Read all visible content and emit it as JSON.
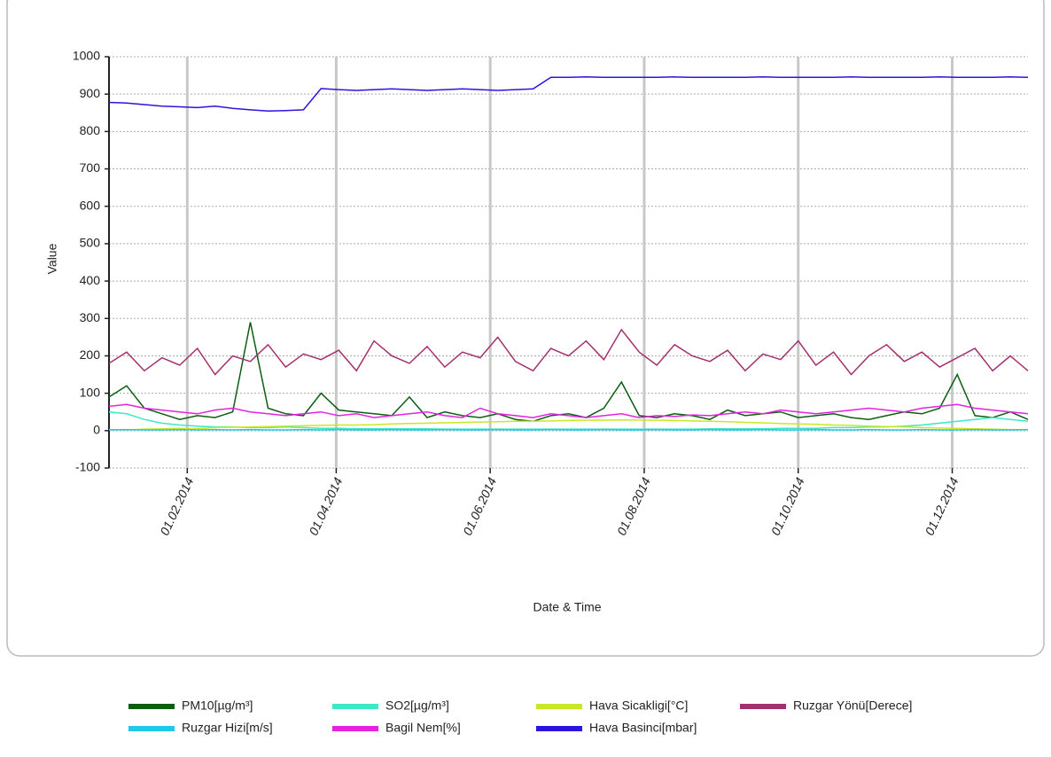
{
  "chart_data": {
    "type": "line",
    "xlabel": "Date & Time",
    "ylabel": "Value",
    "x": [
      "2014-01-01",
      "2014-01-08",
      "2014-01-15",
      "2014-01-22",
      "2014-01-29",
      "2014-02-05",
      "2014-02-12",
      "2014-02-19",
      "2014-02-26",
      "2014-03-05",
      "2014-03-12",
      "2014-03-19",
      "2014-03-26",
      "2014-04-02",
      "2014-04-09",
      "2014-04-16",
      "2014-04-23",
      "2014-04-30",
      "2014-05-07",
      "2014-05-14",
      "2014-05-21",
      "2014-05-28",
      "2014-06-04",
      "2014-06-11",
      "2014-06-18",
      "2014-06-25",
      "2014-07-02",
      "2014-07-09",
      "2014-07-16",
      "2014-07-23",
      "2014-07-30",
      "2014-08-06",
      "2014-08-13",
      "2014-08-20",
      "2014-08-27",
      "2014-09-03",
      "2014-09-10",
      "2014-09-17",
      "2014-09-24",
      "2014-10-01",
      "2014-10-08",
      "2014-10-15",
      "2014-10-22",
      "2014-10-29",
      "2014-11-05",
      "2014-11-12",
      "2014-11-19",
      "2014-11-26",
      "2014-12-03",
      "2014-12-10",
      "2014-12-17",
      "2014-12-24",
      "2014-12-31"
    ],
    "series": [
      {
        "name": "PM10[µg/m³]",
        "color": "#0b5e12",
        "values": [
          90,
          120,
          60,
          45,
          30,
          40,
          35,
          50,
          290,
          60,
          45,
          40,
          100,
          55,
          50,
          45,
          40,
          90,
          35,
          50,
          40,
          35,
          45,
          30,
          25,
          40,
          45,
          35,
          60,
          130,
          40,
          35,
          45,
          40,
          30,
          55,
          40,
          45,
          50,
          35,
          40,
          45,
          35,
          30,
          40,
          50,
          45,
          60,
          150,
          40,
          35,
          50,
          30
        ]
      },
      {
        "name": "SO2[µg/m³]",
        "color": "#3de8c4",
        "values": [
          50,
          45,
          30,
          20,
          15,
          12,
          10,
          10,
          8,
          8,
          10,
          8,
          6,
          6,
          5,
          5,
          5,
          5,
          5,
          4,
          4,
          4,
          4,
          4,
          4,
          4,
          4,
          4,
          4,
          4,
          4,
          4,
          4,
          4,
          5,
          5,
          5,
          5,
          6,
          6,
          6,
          8,
          8,
          10,
          10,
          12,
          15,
          20,
          25,
          30,
          35,
          30,
          25
        ]
      },
      {
        "name": "Hava Sicakligi[°C]",
        "color": "#c8e826",
        "values": [
          3,
          2,
          4,
          5,
          6,
          5,
          8,
          9,
          10,
          11,
          12,
          13,
          14,
          15,
          15,
          16,
          18,
          19,
          20,
          21,
          22,
          23,
          24,
          25,
          25,
          26,
          27,
          28,
          28,
          29,
          28,
          28,
          27,
          26,
          25,
          24,
          22,
          21,
          19,
          18,
          17,
          15,
          14,
          12,
          11,
          10,
          8,
          7,
          6,
          5,
          4,
          3,
          3
        ]
      },
      {
        "name": "Ruzgar Yönü[Derece]",
        "color": "#a3306f",
        "values": [
          180,
          210,
          160,
          195,
          175,
          220,
          150,
          200,
          185,
          230,
          170,
          205,
          190,
          215,
          160,
          240,
          200,
          180,
          225,
          170,
          210,
          195,
          250,
          185,
          160,
          220,
          200,
          240,
          190,
          270,
          210,
          175,
          230,
          200,
          185,
          215,
          160,
          205,
          190,
          240,
          175,
          210,
          150,
          200,
          230,
          185,
          210,
          170,
          195,
          220,
          160,
          200,
          160
        ]
      },
      {
        "name": "Ruzgar Hizi[m/s]",
        "color": "#22c8ea",
        "values": [
          2,
          3,
          2,
          2,
          3,
          2,
          3,
          2,
          3,
          2,
          2,
          3,
          2,
          3,
          2,
          2,
          3,
          2,
          2,
          3,
          2,
          2,
          3,
          2,
          2,
          3,
          2,
          2,
          3,
          2,
          2,
          3,
          2,
          2,
          3,
          2,
          2,
          3,
          2,
          2,
          3,
          2,
          2,
          3,
          2,
          2,
          3,
          2,
          2,
          3,
          2,
          2,
          3
        ]
      },
      {
        "name": "Bagil Nem[%]",
        "color": "#e422e0",
        "values": [
          65,
          70,
          60,
          55,
          50,
          45,
          55,
          60,
          50,
          45,
          40,
          45,
          50,
          40,
          45,
          35,
          40,
          45,
          50,
          40,
          35,
          60,
          45,
          40,
          35,
          45,
          40,
          35,
          40,
          45,
          35,
          40,
          38,
          42,
          40,
          45,
          50,
          45,
          55,
          50,
          45,
          50,
          55,
          60,
          55,
          50,
          60,
          65,
          70,
          60,
          55,
          50,
          45
        ]
      },
      {
        "name": "Hava Basinci[mbar]",
        "color": "#2a14e0",
        "values": [
          878,
          876,
          872,
          868,
          866,
          864,
          868,
          862,
          858,
          855,
          856,
          858,
          915,
          912,
          910,
          912,
          914,
          912,
          910,
          912,
          914,
          912,
          910,
          912,
          914,
          945,
          945,
          946,
          945,
          945,
          945,
          945,
          946,
          945,
          945,
          945,
          945,
          946,
          945,
          945,
          945,
          945,
          946,
          945,
          945,
          945,
          945,
          946,
          945,
          945,
          945,
          946,
          945
        ]
      }
    ],
    "xlim": [
      "2014-01-01",
      "2014-12-31"
    ],
    "xticks": [
      {
        "value": "2014-02-01",
        "label": "01.02.2014"
      },
      {
        "value": "2014-04-01",
        "label": "01.04.2014"
      },
      {
        "value": "2014-06-01",
        "label": "01.06.2014"
      },
      {
        "value": "2014-08-01",
        "label": "01.08.2014"
      },
      {
        "value": "2014-10-01",
        "label": "01.10.2014"
      },
      {
        "value": "2014-12-01",
        "label": "01.12.2014"
      }
    ],
    "ylim": [
      -100,
      1000
    ],
    "yticks": [
      -100,
      0,
      100,
      200,
      300,
      400,
      500,
      600,
      700,
      800,
      900,
      1000
    ],
    "grid": true,
    "legend": "bottom"
  }
}
